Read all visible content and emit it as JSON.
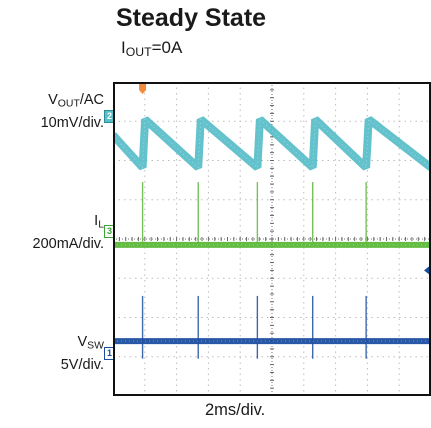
{
  "title": "Steady State",
  "condition": {
    "name_main": "I",
    "name_sub": "OUT",
    "value": "=0A"
  },
  "channels": {
    "vout": {
      "name_main": "V",
      "name_sub": "OUT",
      "name_suffix": "/AC",
      "scale": "10mV/div.",
      "marker": "2",
      "color": "#5bbfc9"
    },
    "il": {
      "name_main": "I",
      "name_sub": "L",
      "scale": "200mA/div.",
      "marker": "3",
      "color": "#5cb83a"
    },
    "vsw": {
      "name_main": "V",
      "name_sub": "SW",
      "scale": "5V/div.",
      "marker": "1",
      "color": "#1c4ea0"
    }
  },
  "xlabel": "2ms/div.",
  "chart_data": {
    "type": "line",
    "title": "Steady State",
    "subtitle": "IOUT=0A",
    "x_units": "div",
    "time_per_div": "2ms/div.",
    "xlim": [
      0,
      10
    ],
    "ylim": [
      -4,
      4
    ],
    "grid": true,
    "trigger_marker_color": "#f08a3c",
    "series": [
      {
        "name": "VOUT/AC",
        "scale": "10mV/div.",
        "color": "#5bbfc9",
        "x": [
          0,
          0.93,
          1.01,
          2.68,
          2.76,
          4.54,
          4.62,
          6.28,
          6.36,
          7.96,
          8.04,
          10
        ],
        "y": [
          2.65,
          1.82,
          3.05,
          1.82,
          3.05,
          1.82,
          3.05,
          1.82,
          3.05,
          1.82,
          3.05,
          1.82
        ]
      },
      {
        "name": "IL",
        "scale": "200mA/div.",
        "color": "#5cb83a",
        "x": [
          0,
          10
        ],
        "y": [
          -0.15,
          -0.15
        ],
        "pulses_x": [
          0.93,
          2.68,
          4.54,
          6.28,
          7.96
        ],
        "pulse_top": 1.45
      },
      {
        "name": "VSW",
        "scale": "5V/div.",
        "color": "#1c4ea0",
        "x": [
          0,
          10
        ],
        "y": [
          -2.6,
          -2.6
        ],
        "pulses_x": [
          0.93,
          2.68,
          4.54,
          6.28,
          7.96
        ],
        "pulse_top": -1.45,
        "pulse_bottom": -3.05
      }
    ]
  }
}
